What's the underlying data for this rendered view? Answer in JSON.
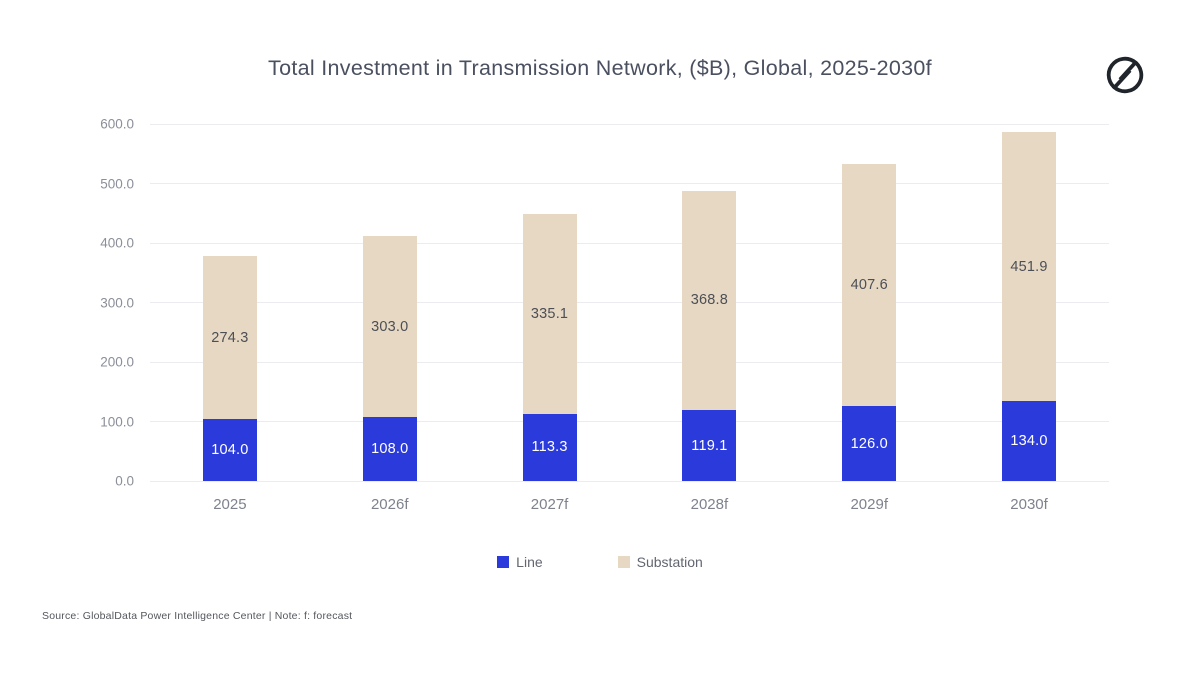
{
  "title": "Total Investment in Transmission Network, ($B), Global, 2025-2030f",
  "logo": {
    "name": "GlobalData logo",
    "color": "#20242B"
  },
  "source_note": "Source: GlobalData Power Intelligence Center | Note: f: forecast",
  "chart_data": {
    "type": "bar",
    "stacked": true,
    "title": "Total Investment in Transmission Network, ($B), Global, 2025-2030f",
    "categories": [
      "2025",
      "2026f",
      "2027f",
      "2028f",
      "2029f",
      "2030f"
    ],
    "series": [
      {
        "name": "Line",
        "color": "#2B3BDB",
        "label_color": "#FFFFFF",
        "values": [
          104.0,
          108.0,
          113.3,
          119.1,
          126.0,
          134.0
        ]
      },
      {
        "name": "Substation",
        "color": "#E7D8C3",
        "label_color": "#4C4F56",
        "values": [
          274.3,
          303.0,
          335.1,
          368.8,
          407.6,
          451.9
        ]
      }
    ],
    "totals": [
      378.3,
      411.0,
      448.4,
      487.9,
      533.6,
      585.9
    ],
    "ylim": [
      0,
      600
    ],
    "yticks": [
      0,
      100,
      200,
      300,
      400,
      500,
      600
    ],
    "ytick_labels": [
      "0.0",
      "100.0",
      "200.0",
      "300.0",
      "400.0",
      "500.0",
      "600.0"
    ],
    "xlabel": "",
    "ylabel": "",
    "grid": true,
    "gridline_color": "#ebebf0",
    "legend_position": "bottom",
    "value_labels": "inside-center"
  }
}
